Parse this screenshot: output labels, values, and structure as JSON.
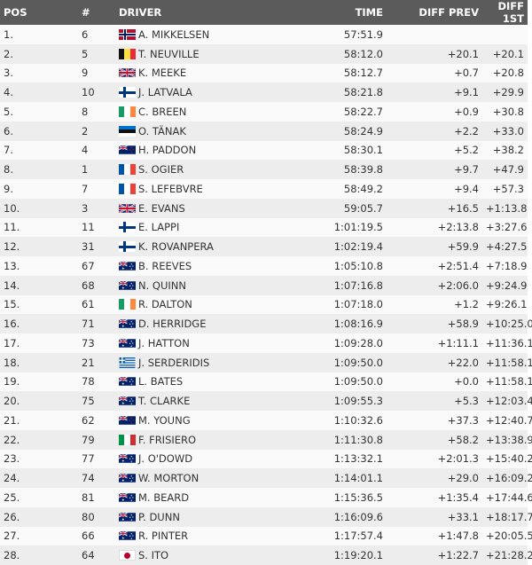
{
  "headers": {
    "pos": "POS",
    "num": "#",
    "driver": "DRIVER",
    "time": "TIME",
    "diff_prev": "DIFF PREV",
    "diff_first": "DIFF 1ST"
  },
  "rows": [
    {
      "pos": "1.",
      "num": "6",
      "flag": "NO",
      "driver": "A. MIKKELSEN",
      "time": "57:51.9",
      "diff_prev": "",
      "diff_first": ""
    },
    {
      "pos": "2.",
      "num": "5",
      "flag": "BE",
      "driver": "T. NEUVILLE",
      "time": "58:12.0",
      "diff_prev": "+20.1",
      "diff_first": "+20.1"
    },
    {
      "pos": "3.",
      "num": "9",
      "flag": "GB",
      "driver": "K. MEEKE",
      "time": "58:12.7",
      "diff_prev": "+0.7",
      "diff_first": "+20.8"
    },
    {
      "pos": "4.",
      "num": "10",
      "flag": "FI",
      "driver": "J. LATVALA",
      "time": "58:21.8",
      "diff_prev": "+9.1",
      "diff_first": "+29.9"
    },
    {
      "pos": "5.",
      "num": "8",
      "flag": "IE",
      "driver": "C. BREEN",
      "time": "58:22.7",
      "diff_prev": "+0.9",
      "diff_first": "+30.8"
    },
    {
      "pos": "6.",
      "num": "2",
      "flag": "EE",
      "driver": "O. TÄNAK",
      "time": "58:24.9",
      "diff_prev": "+2.2",
      "diff_first": "+33.0"
    },
    {
      "pos": "7.",
      "num": "4",
      "flag": "NZ",
      "driver": "H. PADDON",
      "time": "58:30.1",
      "diff_prev": "+5.2",
      "diff_first": "+38.2"
    },
    {
      "pos": "8.",
      "num": "1",
      "flag": "FR",
      "driver": "S. OGIER",
      "time": "58:39.8",
      "diff_prev": "+9.7",
      "diff_first": "+47.9"
    },
    {
      "pos": "9.",
      "num": "7",
      "flag": "FR",
      "driver": "S. LEFEBVRE",
      "time": "58:49.2",
      "diff_prev": "+9.4",
      "diff_first": "+57.3"
    },
    {
      "pos": "10.",
      "num": "3",
      "flag": "GB",
      "driver": "E. EVANS",
      "time": "59:05.7",
      "diff_prev": "+16.5",
      "diff_first": "+1:13.8"
    },
    {
      "pos": "11.",
      "num": "11",
      "flag": "FI",
      "driver": "E. LAPPI",
      "time": "1:01:19.5",
      "diff_prev": "+2:13.8",
      "diff_first": "+3:27.6"
    },
    {
      "pos": "12.",
      "num": "31",
      "flag": "FI",
      "driver": "K. ROVANPERA",
      "time": "1:02:19.4",
      "diff_prev": "+59.9",
      "diff_first": "+4:27.5"
    },
    {
      "pos": "13.",
      "num": "67",
      "flag": "AU",
      "driver": "B. REEVES",
      "time": "1:05:10.8",
      "diff_prev": "+2:51.4",
      "diff_first": "+7:18.9"
    },
    {
      "pos": "14.",
      "num": "68",
      "flag": "AU",
      "driver": "N. QUINN",
      "time": "1:07:16.8",
      "diff_prev": "+2:06.0",
      "diff_first": "+9:24.9"
    },
    {
      "pos": "15.",
      "num": "61",
      "flag": "IE",
      "driver": "R. DALTON",
      "time": "1:07:18.0",
      "diff_prev": "+1.2",
      "diff_first": "+9:26.1"
    },
    {
      "pos": "16.",
      "num": "71",
      "flag": "AU",
      "driver": "D. HERRIDGE",
      "time": "1:08:16.9",
      "diff_prev": "+58.9",
      "diff_first": "+10:25.0"
    },
    {
      "pos": "17.",
      "num": "73",
      "flag": "AU",
      "driver": "J. HATTON",
      "time": "1:09:28.0",
      "diff_prev": "+1:11.1",
      "diff_first": "+11:36.1"
    },
    {
      "pos": "18.",
      "num": "21",
      "flag": "GR",
      "driver": "J. SERDERIDIS",
      "time": "1:09:50.0",
      "diff_prev": "+22.0",
      "diff_first": "+11:58.1"
    },
    {
      "pos": "19.",
      "num": "78",
      "flag": "AU",
      "driver": "L. BATES",
      "time": "1:09:50.0",
      "diff_prev": "+0.0",
      "diff_first": "+11:58.1"
    },
    {
      "pos": "20.",
      "num": "75",
      "flag": "AU",
      "driver": "T. CLARKE",
      "time": "1:09:55.3",
      "diff_prev": "+5.3",
      "diff_first": "+12:03.4"
    },
    {
      "pos": "21.",
      "num": "62",
      "flag": "NZ",
      "driver": "M. YOUNG",
      "time": "1:10:32.6",
      "diff_prev": "+37.3",
      "diff_first": "+12:40.7"
    },
    {
      "pos": "22.",
      "num": "79",
      "flag": "IT",
      "driver": "F. FRISIERO",
      "time": "1:11:30.8",
      "diff_prev": "+58.2",
      "diff_first": "+13:38.9"
    },
    {
      "pos": "23.",
      "num": "77",
      "flag": "AU",
      "driver": "J. O'DOWD",
      "time": "1:13:32.1",
      "diff_prev": "+2:01.3",
      "diff_first": "+15:40.2"
    },
    {
      "pos": "24.",
      "num": "74",
      "flag": "AU",
      "driver": "W. MORTON",
      "time": "1:14:01.1",
      "diff_prev": "+29.0",
      "diff_first": "+16:09.2"
    },
    {
      "pos": "25.",
      "num": "81",
      "flag": "AU",
      "driver": "M. BEARD",
      "time": "1:15:36.5",
      "diff_prev": "+1:35.4",
      "diff_first": "+17:44.6"
    },
    {
      "pos": "26.",
      "num": "80",
      "flag": "AU",
      "driver": "P. DUNN",
      "time": "1:16:09.6",
      "diff_prev": "+33.1",
      "diff_first": "+18:17.7"
    },
    {
      "pos": "27.",
      "num": "66",
      "flag": "AU",
      "driver": "R. PINTER",
      "time": "1:17:57.4",
      "diff_prev": "+1:47.8",
      "diff_first": "+20:05.5"
    },
    {
      "pos": "28.",
      "num": "64",
      "flag": "JP",
      "driver": "S. ITO",
      "time": "1:19:20.1",
      "diff_prev": "+1:22.7",
      "diff_first": "+21:28.2"
    }
  ]
}
